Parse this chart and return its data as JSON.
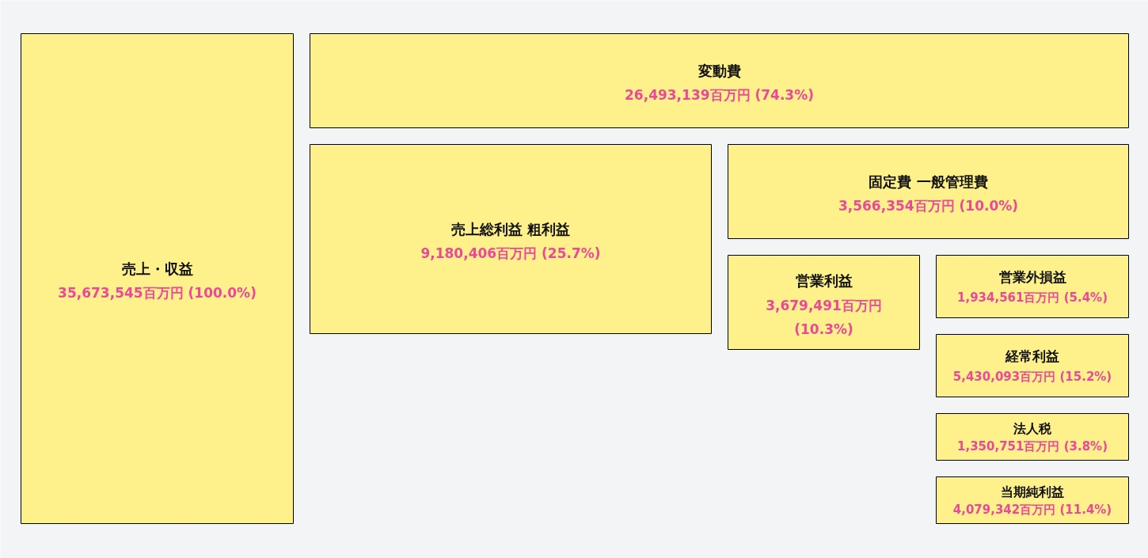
{
  "chart_data": {
    "type": "other",
    "categories": [
      "売上・収益",
      "変動費",
      "売上総利益 粗利益",
      "固定費 一般管理費",
      "営業利益",
      "営業外損益",
      "経常利益",
      "法人税",
      "当期純利益"
    ],
    "values": [
      35673545,
      26493139,
      9180406,
      3566354,
      3679491,
      1934561,
      5430093,
      1350751,
      4079342
    ],
    "value_labels": [
      "35,673,545百万円 (100.0%)",
      "26,493,139百万円 (74.3%)",
      "9,180,406百万円 (25.7%)",
      "3,566,354百万円 (10.0%)",
      "3,679,491百万円 (10.3%)",
      "1,934,561百万円 (5.4%)",
      "5,430,093百万円 (15.2%)",
      "1,350,751百万円 (3.8%)",
      "4,079,342百万円 (11.4%)"
    ],
    "color": "#fef08a"
  }
}
